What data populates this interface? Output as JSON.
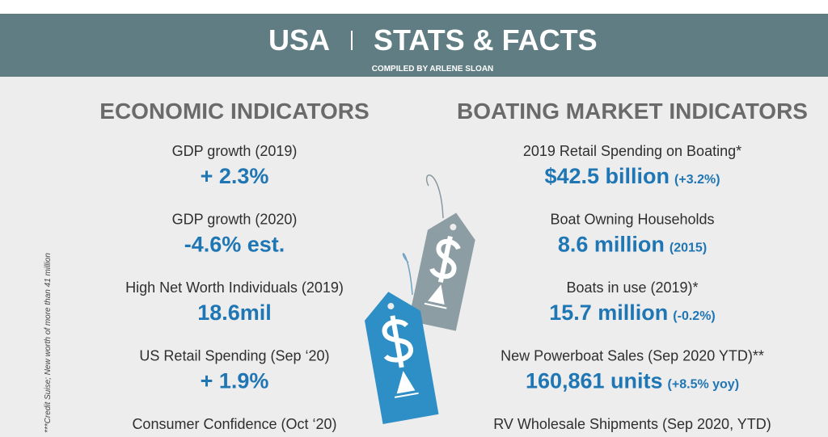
{
  "header": {
    "title_left": "USA",
    "title_right": "STATS & FACTS",
    "subtitle": "COMPILED BY ARLENE SLOAN"
  },
  "economic": {
    "heading": "ECONOMIC INDICATORS",
    "items": [
      {
        "label": "GDP growth (2019)",
        "value": "+ 2.3%"
      },
      {
        "label": "GDP growth (2020)",
        "value": "-4.6% est."
      },
      {
        "label": "High Net Worth Individuals (2019)",
        "value": "18.6mil"
      },
      {
        "label": "US Retail Spending (Sep ‘20)",
        "value": "+ 1.9%"
      },
      {
        "label": "Consumer Confidence (Oct ‘20)"
      }
    ]
  },
  "boating": {
    "heading": "BOATING MARKET INDICATORS",
    "items": [
      {
        "label": "2019 Retail Spending on Boating*",
        "value": "$42.5 billion",
        "note": "(+3.2%)"
      },
      {
        "label": "Boat Owning Households",
        "value": "8.6 million",
        "note": "(2015)"
      },
      {
        "label": "Boats in use (2019)*",
        "value": "15.7 million",
        "note": "(-0.2%)"
      },
      {
        "label": "New Powerboat Sales (Sep 2020 YTD)**",
        "value": "160,861 units",
        "note": "(+8.5% yoy)"
      },
      {
        "label": "RV Wholesale Shipments (Sep 2020, YTD)"
      }
    ]
  },
  "footnote": "***Credit Suise; New worth of more than 41 million"
}
